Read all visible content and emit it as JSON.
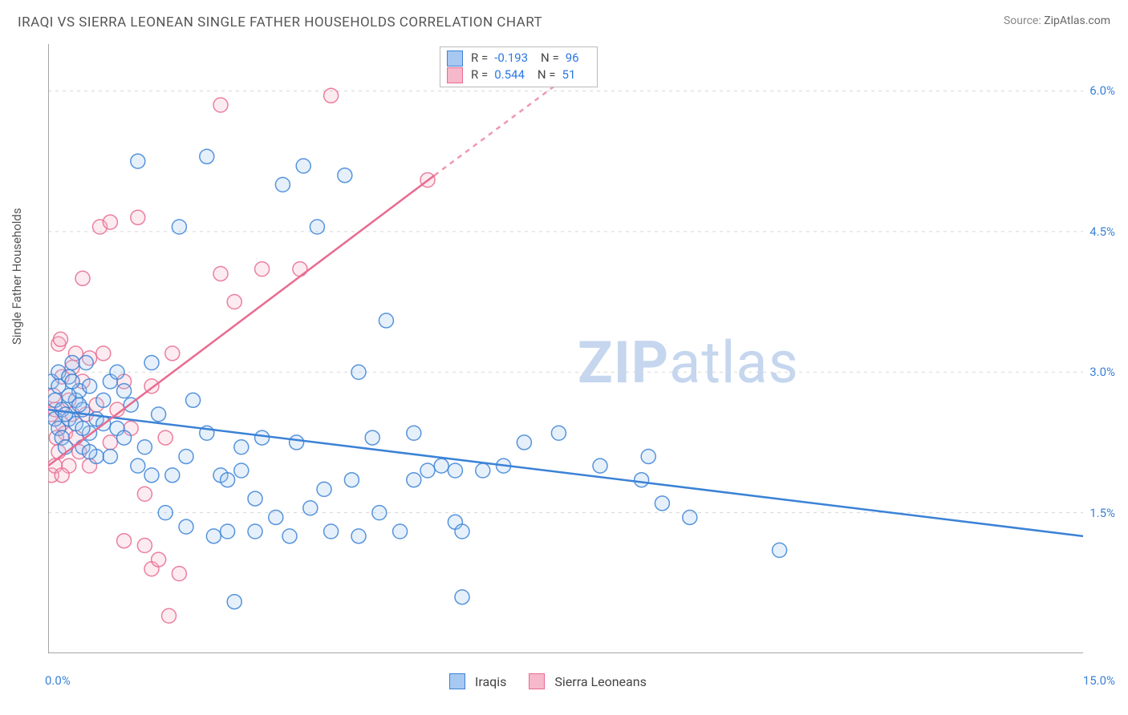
{
  "title": "IRAQI VS SIERRA LEONEAN SINGLE FATHER HOUSEHOLDS CORRELATION CHART",
  "source_label": "Source:",
  "source_site": "ZipAtlas.com",
  "y_axis_label": "Single Father Households",
  "watermark_zip": "ZIP",
  "watermark_atlas": "atlas",
  "chart": {
    "type": "scatter",
    "xlim": [
      0.0,
      15.0
    ],
    "ylim": [
      0.0,
      6.5
    ],
    "x_min_label": "0.0%",
    "x_max_label": "15.0%",
    "y_ticks": [
      1.5,
      3.0,
      4.5,
      6.0
    ],
    "y_tick_labels": [
      "1.5%",
      "3.0%",
      "4.5%",
      "6.0%"
    ],
    "x_minor_ticks": [
      1.67,
      3.33,
      5.0,
      6.67,
      8.33,
      10.0,
      11.67,
      13.33
    ],
    "grid_color": "#d8d8d8",
    "axis_color": "#888888",
    "background_color": "#ffffff",
    "marker_radius": 9,
    "marker_stroke_width": 1.5,
    "marker_fill_opacity": 0.28,
    "trend_line_width": 2.5,
    "series": [
      {
        "name": "Iraqis",
        "color_stroke": "#3b82d6",
        "color_fill": "#a7c8f0",
        "R": "-0.193",
        "N": "96",
        "trend": {
          "x1": 0.0,
          "y1": 2.6,
          "x2": 15.0,
          "y2": 1.25
        },
        "points": [
          [
            0.05,
            2.9
          ],
          [
            0.1,
            2.5
          ],
          [
            0.1,
            2.7
          ],
          [
            0.15,
            2.4
          ],
          [
            0.15,
            3.0
          ],
          [
            0.2,
            2.3
          ],
          [
            0.2,
            2.6
          ],
          [
            0.25,
            2.2
          ],
          [
            0.3,
            2.95
          ],
          [
            0.3,
            2.5
          ],
          [
            0.35,
            3.1
          ],
          [
            0.4,
            2.45
          ],
          [
            0.4,
            2.7
          ],
          [
            0.45,
            2.8
          ],
          [
            0.5,
            2.2
          ],
          [
            0.5,
            2.6
          ],
          [
            0.55,
            3.1
          ],
          [
            0.6,
            2.35
          ],
          [
            0.6,
            2.85
          ],
          [
            0.7,
            2.5
          ],
          [
            0.8,
            2.7
          ],
          [
            0.9,
            2.9
          ],
          [
            1.0,
            2.4
          ],
          [
            1.0,
            3.0
          ],
          [
            1.1,
            2.3
          ],
          [
            1.3,
            5.25
          ],
          [
            1.3,
            2.0
          ],
          [
            1.5,
            1.9
          ],
          [
            1.5,
            3.1
          ],
          [
            1.6,
            2.55
          ],
          [
            1.7,
            1.5
          ],
          [
            1.8,
            1.9
          ],
          [
            1.9,
            4.55
          ],
          [
            2.0,
            2.1
          ],
          [
            2.0,
            1.35
          ],
          [
            2.1,
            2.7
          ],
          [
            2.3,
            5.3
          ],
          [
            2.3,
            2.35
          ],
          [
            2.4,
            1.25
          ],
          [
            2.5,
            1.9
          ],
          [
            2.6,
            1.3
          ],
          [
            2.6,
            1.85
          ],
          [
            2.8,
            1.95
          ],
          [
            2.8,
            2.2
          ],
          [
            3.0,
            1.3
          ],
          [
            3.0,
            1.65
          ],
          [
            3.1,
            2.3
          ],
          [
            3.3,
            1.45
          ],
          [
            3.4,
            5.0
          ],
          [
            3.5,
            1.25
          ],
          [
            3.6,
            2.25
          ],
          [
            3.7,
            5.2
          ],
          [
            3.8,
            1.55
          ],
          [
            3.9,
            4.55
          ],
          [
            4.0,
            1.75
          ],
          [
            4.1,
            1.3
          ],
          [
            4.3,
            5.1
          ],
          [
            4.4,
            1.85
          ],
          [
            4.5,
            1.25
          ],
          [
            4.5,
            3.0
          ],
          [
            4.7,
            2.3
          ],
          [
            4.8,
            1.5
          ],
          [
            4.9,
            3.55
          ],
          [
            5.1,
            1.3
          ],
          [
            5.3,
            1.85
          ],
          [
            5.3,
            2.35
          ],
          [
            5.5,
            1.95
          ],
          [
            5.7,
            2.0
          ],
          [
            5.9,
            1.4
          ],
          [
            5.9,
            1.95
          ],
          [
            6.0,
            0.6
          ],
          [
            6.0,
            1.3
          ],
          [
            6.3,
            1.95
          ],
          [
            6.6,
            2.0
          ],
          [
            6.9,
            2.25
          ],
          [
            7.4,
            2.35
          ],
          [
            8.0,
            2.0
          ],
          [
            8.6,
            1.85
          ],
          [
            8.7,
            2.1
          ],
          [
            8.9,
            1.6
          ],
          [
            9.3,
            1.45
          ],
          [
            10.6,
            1.1
          ],
          [
            2.7,
            0.55
          ],
          [
            0.7,
            2.1
          ],
          [
            0.8,
            2.45
          ],
          [
            0.3,
            2.75
          ],
          [
            0.15,
            2.85
          ],
          [
            0.25,
            2.55
          ],
          [
            0.35,
            2.9
          ],
          [
            0.45,
            2.65
          ],
          [
            0.6,
            2.15
          ],
          [
            0.5,
            2.4
          ],
          [
            0.9,
            2.1
          ],
          [
            1.2,
            2.65
          ],
          [
            1.4,
            2.2
          ],
          [
            1.1,
            2.8
          ]
        ]
      },
      {
        "name": "Sierra Leoneans",
        "color_stroke": "#e86b8f",
        "color_fill": "#f6b8ca",
        "R": "0.544",
        "N": "51",
        "trend_solid": {
          "x1": 0.0,
          "y1": 2.0,
          "x2": 5.6,
          "y2": 5.1
        },
        "trend_dashed": {
          "x1": 5.6,
          "y1": 5.1,
          "x2": 7.7,
          "y2": 6.25
        },
        "points": [
          [
            0.05,
            1.9
          ],
          [
            0.05,
            2.55
          ],
          [
            0.08,
            2.75
          ],
          [
            0.1,
            2.0
          ],
          [
            0.1,
            2.6
          ],
          [
            0.15,
            2.15
          ],
          [
            0.15,
            3.3
          ],
          [
            0.18,
            3.35
          ],
          [
            0.2,
            2.45
          ],
          [
            0.2,
            2.95
          ],
          [
            0.25,
            2.35
          ],
          [
            0.3,
            2.0
          ],
          [
            0.3,
            2.7
          ],
          [
            0.35,
            2.55
          ],
          [
            0.35,
            3.05
          ],
          [
            0.4,
            2.3
          ],
          [
            0.45,
            2.15
          ],
          [
            0.5,
            2.9
          ],
          [
            0.5,
            4.0
          ],
          [
            0.55,
            2.55
          ],
          [
            0.6,
            3.15
          ],
          [
            0.6,
            2.0
          ],
          [
            0.7,
            2.65
          ],
          [
            0.75,
            4.55
          ],
          [
            0.8,
            3.2
          ],
          [
            0.9,
            2.25
          ],
          [
            0.9,
            4.6
          ],
          [
            1.0,
            2.6
          ],
          [
            1.1,
            1.2
          ],
          [
            1.1,
            2.9
          ],
          [
            1.2,
            2.4
          ],
          [
            1.3,
            4.65
          ],
          [
            1.4,
            1.15
          ],
          [
            1.4,
            1.7
          ],
          [
            1.5,
            0.9
          ],
          [
            1.5,
            2.85
          ],
          [
            1.6,
            1.0
          ],
          [
            1.7,
            2.3
          ],
          [
            1.75,
            0.4
          ],
          [
            1.8,
            3.2
          ],
          [
            1.9,
            0.85
          ],
          [
            2.5,
            4.05
          ],
          [
            2.5,
            5.85
          ],
          [
            2.7,
            3.75
          ],
          [
            3.1,
            4.1
          ],
          [
            3.65,
            4.1
          ],
          [
            4.1,
            5.95
          ],
          [
            5.5,
            5.05
          ],
          [
            0.12,
            2.3
          ],
          [
            0.2,
            1.9
          ],
          [
            0.4,
            3.2
          ]
        ]
      }
    ]
  },
  "stats_box": {
    "r_label": "R =",
    "n_label": "N ="
  },
  "legend": {
    "s1": "Iraqis",
    "s2": "Sierra Leoneans"
  }
}
